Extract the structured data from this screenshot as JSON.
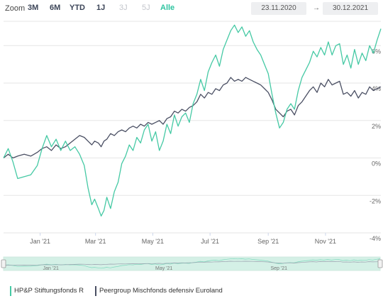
{
  "toolbar": {
    "zoom_label": "Zoom",
    "buttons": [
      {
        "label": "3M",
        "state": "enabled"
      },
      {
        "label": "6M",
        "state": "enabled"
      },
      {
        "label": "YTD",
        "state": "enabled"
      },
      {
        "label": "1J",
        "state": "enabled"
      },
      {
        "label": "3J",
        "state": "disabled"
      },
      {
        "label": "5J",
        "state": "disabled"
      },
      {
        "label": "Alle",
        "state": "active"
      }
    ],
    "date_from": "23.11.2020",
    "date_arrow": "→",
    "date_to": "30.12.2021"
  },
  "colors": {
    "fund": "#45c9a4",
    "peer": "#4a4f63",
    "active": "#2ec4a0",
    "navigator_fill": "#d4f0e6"
  },
  "chart_data": {
    "type": "line",
    "y_tick_labels": [
      "6%",
      "4%",
      "2%",
      "0%",
      "-2%",
      "-4%"
    ],
    "y_ticks": [
      6,
      4,
      2,
      0,
      -2,
      -4
    ],
    "ylim": [
      -4,
      7.3
    ],
    "x_tick_labels": [
      "Jan '21",
      "Mar '21",
      "May '21",
      "Jul '21",
      "Sep '21",
      "Nov '21"
    ],
    "x_tick_dates": [
      "2021-01-01",
      "2021-03-01",
      "2021-05-01",
      "2021-07-01",
      "2021-09-01",
      "2021-11-01"
    ],
    "x_range": [
      "2020-11-23",
      "2021-12-30"
    ],
    "grid": "horizontal",
    "series": [
      {
        "name": "HP&P Stiftungsfonds R",
        "points": [
          [
            "2020-11-23",
            0.0
          ],
          [
            "2020-11-28",
            0.5
          ],
          [
            "2020-12-03",
            -0.2
          ],
          [
            "2020-12-08",
            -1.1
          ],
          [
            "2020-12-15",
            -1.0
          ],
          [
            "2020-12-22",
            -0.9
          ],
          [
            "2020-12-29",
            -0.4
          ],
          [
            "2021-01-03",
            0.5
          ],
          [
            "2021-01-08",
            1.2
          ],
          [
            "2021-01-13",
            0.6
          ],
          [
            "2021-01-18",
            1.0
          ],
          [
            "2021-01-23",
            0.4
          ],
          [
            "2021-01-28",
            0.9
          ],
          [
            "2021-02-02",
            0.4
          ],
          [
            "2021-02-07",
            0.6
          ],
          [
            "2021-02-12",
            0.2
          ],
          [
            "2021-02-17",
            -0.4
          ],
          [
            "2021-02-21",
            -1.6
          ],
          [
            "2021-02-25",
            -2.5
          ],
          [
            "2021-02-28",
            -2.2
          ],
          [
            "2021-03-04",
            -2.7
          ],
          [
            "2021-03-07",
            -3.1
          ],
          [
            "2021-03-10",
            -2.8
          ],
          [
            "2021-03-13",
            -2.1
          ],
          [
            "2021-03-17",
            -2.7
          ],
          [
            "2021-03-21",
            -1.8
          ],
          [
            "2021-03-25",
            -1.3
          ],
          [
            "2021-03-29",
            -0.3
          ],
          [
            "2021-04-02",
            0.1
          ],
          [
            "2021-04-06",
            0.7
          ],
          [
            "2021-04-10",
            0.4
          ],
          [
            "2021-04-14",
            1.1
          ],
          [
            "2021-04-18",
            0.8
          ],
          [
            "2021-04-22",
            1.5
          ],
          [
            "2021-04-26",
            1.8
          ],
          [
            "2021-04-30",
            0.9
          ],
          [
            "2021-05-04",
            1.4
          ],
          [
            "2021-05-08",
            0.4
          ],
          [
            "2021-05-12",
            0.9
          ],
          [
            "2021-05-16",
            1.8
          ],
          [
            "2021-05-20",
            1.3
          ],
          [
            "2021-05-24",
            2.3
          ],
          [
            "2021-05-28",
            1.7
          ],
          [
            "2021-06-01",
            2.2
          ],
          [
            "2021-06-05",
            2.4
          ],
          [
            "2021-06-09",
            1.9
          ],
          [
            "2021-06-13",
            2.9
          ],
          [
            "2021-06-17",
            3.4
          ],
          [
            "2021-06-21",
            4.2
          ],
          [
            "2021-06-25",
            3.6
          ],
          [
            "2021-06-29",
            4.6
          ],
          [
            "2021-07-03",
            5.1
          ],
          [
            "2021-07-07",
            5.5
          ],
          [
            "2021-07-11",
            4.9
          ],
          [
            "2021-07-15",
            5.8
          ],
          [
            "2021-07-19",
            6.3
          ],
          [
            "2021-07-23",
            6.8
          ],
          [
            "2021-07-27",
            7.1
          ],
          [
            "2021-07-31",
            6.7
          ],
          [
            "2021-08-04",
            7.0
          ],
          [
            "2021-08-08",
            6.5
          ],
          [
            "2021-08-12",
            6.8
          ],
          [
            "2021-08-16",
            6.2
          ],
          [
            "2021-08-20",
            5.8
          ],
          [
            "2021-08-24",
            5.5
          ],
          [
            "2021-08-28",
            5.0
          ],
          [
            "2021-09-01",
            4.5
          ],
          [
            "2021-09-05",
            3.4
          ],
          [
            "2021-09-09",
            2.4
          ],
          [
            "2021-09-13",
            1.6
          ],
          [
            "2021-09-17",
            1.9
          ],
          [
            "2021-09-21",
            2.6
          ],
          [
            "2021-09-25",
            2.9
          ],
          [
            "2021-09-29",
            2.6
          ],
          [
            "2021-10-03",
            3.6
          ],
          [
            "2021-10-07",
            4.3
          ],
          [
            "2021-10-11",
            4.7
          ],
          [
            "2021-10-15",
            5.1
          ],
          [
            "2021-10-19",
            5.7
          ],
          [
            "2021-10-23",
            5.4
          ],
          [
            "2021-10-27",
            5.9
          ],
          [
            "2021-10-31",
            5.5
          ],
          [
            "2021-11-04",
            6.2
          ],
          [
            "2021-11-08",
            5.5
          ],
          [
            "2021-11-12",
            6.0
          ],
          [
            "2021-11-16",
            6.1
          ],
          [
            "2021-11-20",
            5.0
          ],
          [
            "2021-11-24",
            5.5
          ],
          [
            "2021-11-28",
            4.8
          ],
          [
            "2021-12-02",
            5.8
          ],
          [
            "2021-12-06",
            5.0
          ],
          [
            "2021-12-10",
            5.6
          ],
          [
            "2021-12-14",
            5.2
          ],
          [
            "2021-12-18",
            6.0
          ],
          [
            "2021-12-22",
            5.6
          ],
          [
            "2021-12-26",
            6.3
          ],
          [
            "2021-12-30",
            6.9
          ]
        ]
      },
      {
        "name": "Peergroup Mischfonds defensiv Euroland",
        "points": [
          [
            "2020-11-23",
            0.0
          ],
          [
            "2020-11-28",
            0.2
          ],
          [
            "2020-12-03",
            0.0
          ],
          [
            "2020-12-08",
            0.1
          ],
          [
            "2020-12-15",
            0.2
          ],
          [
            "2020-12-22",
            0.1
          ],
          [
            "2020-12-29",
            0.3
          ],
          [
            "2021-01-03",
            0.5
          ],
          [
            "2021-01-08",
            0.6
          ],
          [
            "2021-01-13",
            0.4
          ],
          [
            "2021-01-18",
            0.7
          ],
          [
            "2021-01-23",
            0.5
          ],
          [
            "2021-01-28",
            0.6
          ],
          [
            "2021-02-02",
            0.8
          ],
          [
            "2021-02-07",
            1.0
          ],
          [
            "2021-02-12",
            1.2
          ],
          [
            "2021-02-17",
            1.1
          ],
          [
            "2021-02-21",
            0.9
          ],
          [
            "2021-02-25",
            0.7
          ],
          [
            "2021-02-28",
            0.9
          ],
          [
            "2021-03-04",
            0.8
          ],
          [
            "2021-03-07",
            0.6
          ],
          [
            "2021-03-10",
            0.9
          ],
          [
            "2021-03-13",
            1.0
          ],
          [
            "2021-03-17",
            1.3
          ],
          [
            "2021-03-21",
            1.2
          ],
          [
            "2021-03-25",
            1.4
          ],
          [
            "2021-03-29",
            1.5
          ],
          [
            "2021-04-02",
            1.4
          ],
          [
            "2021-04-06",
            1.6
          ],
          [
            "2021-04-10",
            1.7
          ],
          [
            "2021-04-14",
            1.6
          ],
          [
            "2021-04-18",
            1.8
          ],
          [
            "2021-04-22",
            1.7
          ],
          [
            "2021-04-26",
            1.9
          ],
          [
            "2021-04-30",
            1.8
          ],
          [
            "2021-05-04",
            1.9
          ],
          [
            "2021-05-08",
            2.0
          ],
          [
            "2021-05-12",
            1.8
          ],
          [
            "2021-05-16",
            2.1
          ],
          [
            "2021-05-20",
            2.2
          ],
          [
            "2021-05-24",
            2.5
          ],
          [
            "2021-05-28",
            2.4
          ],
          [
            "2021-06-01",
            2.6
          ],
          [
            "2021-06-05",
            2.5
          ],
          [
            "2021-06-09",
            2.7
          ],
          [
            "2021-06-13",
            2.8
          ],
          [
            "2021-06-17",
            3.0
          ],
          [
            "2021-06-21",
            3.4
          ],
          [
            "2021-06-25",
            3.2
          ],
          [
            "2021-06-29",
            3.5
          ],
          [
            "2021-07-03",
            3.4
          ],
          [
            "2021-07-07",
            3.7
          ],
          [
            "2021-07-11",
            3.6
          ],
          [
            "2021-07-15",
            3.9
          ],
          [
            "2021-07-19",
            4.0
          ],
          [
            "2021-07-23",
            4.3
          ],
          [
            "2021-07-27",
            4.1
          ],
          [
            "2021-07-31",
            4.2
          ],
          [
            "2021-08-04",
            4.1
          ],
          [
            "2021-08-08",
            4.3
          ],
          [
            "2021-08-12",
            4.2
          ],
          [
            "2021-08-16",
            4.1
          ],
          [
            "2021-08-20",
            4.0
          ],
          [
            "2021-08-24",
            3.9
          ],
          [
            "2021-08-28",
            3.7
          ],
          [
            "2021-09-01",
            3.5
          ],
          [
            "2021-09-05",
            3.1
          ],
          [
            "2021-09-09",
            2.6
          ],
          [
            "2021-09-13",
            2.4
          ],
          [
            "2021-09-17",
            2.2
          ],
          [
            "2021-09-21",
            2.5
          ],
          [
            "2021-09-25",
            2.6
          ],
          [
            "2021-09-29",
            2.3
          ],
          [
            "2021-10-03",
            2.8
          ],
          [
            "2021-10-07",
            3.0
          ],
          [
            "2021-10-11",
            3.3
          ],
          [
            "2021-10-15",
            3.6
          ],
          [
            "2021-10-19",
            3.8
          ],
          [
            "2021-10-23",
            3.5
          ],
          [
            "2021-10-27",
            4.0
          ],
          [
            "2021-10-31",
            3.8
          ],
          [
            "2021-11-04",
            4.2
          ],
          [
            "2021-11-08",
            3.9
          ],
          [
            "2021-11-12",
            4.0
          ],
          [
            "2021-11-16",
            4.1
          ],
          [
            "2021-11-20",
            3.4
          ],
          [
            "2021-11-24",
            3.5
          ],
          [
            "2021-11-28",
            3.3
          ],
          [
            "2021-12-02",
            3.6
          ],
          [
            "2021-12-06",
            3.2
          ],
          [
            "2021-12-10",
            3.5
          ],
          [
            "2021-12-14",
            3.4
          ],
          [
            "2021-12-18",
            3.8
          ],
          [
            "2021-12-22",
            3.6
          ],
          [
            "2021-12-26",
            3.7
          ],
          [
            "2021-12-30",
            3.8
          ]
        ]
      }
    ]
  },
  "navigator": {
    "x_tick_labels": [
      "Jan '21",
      "May '21",
      "Sep '21"
    ],
    "x_tick_dates": [
      "2021-01-01",
      "2021-05-01",
      "2021-09-01"
    ]
  },
  "legend": {
    "items": [
      {
        "label": "HP&P Stiftungsfonds R"
      },
      {
        "label": "Peergroup Mischfonds defensiv Euroland"
      }
    ]
  }
}
